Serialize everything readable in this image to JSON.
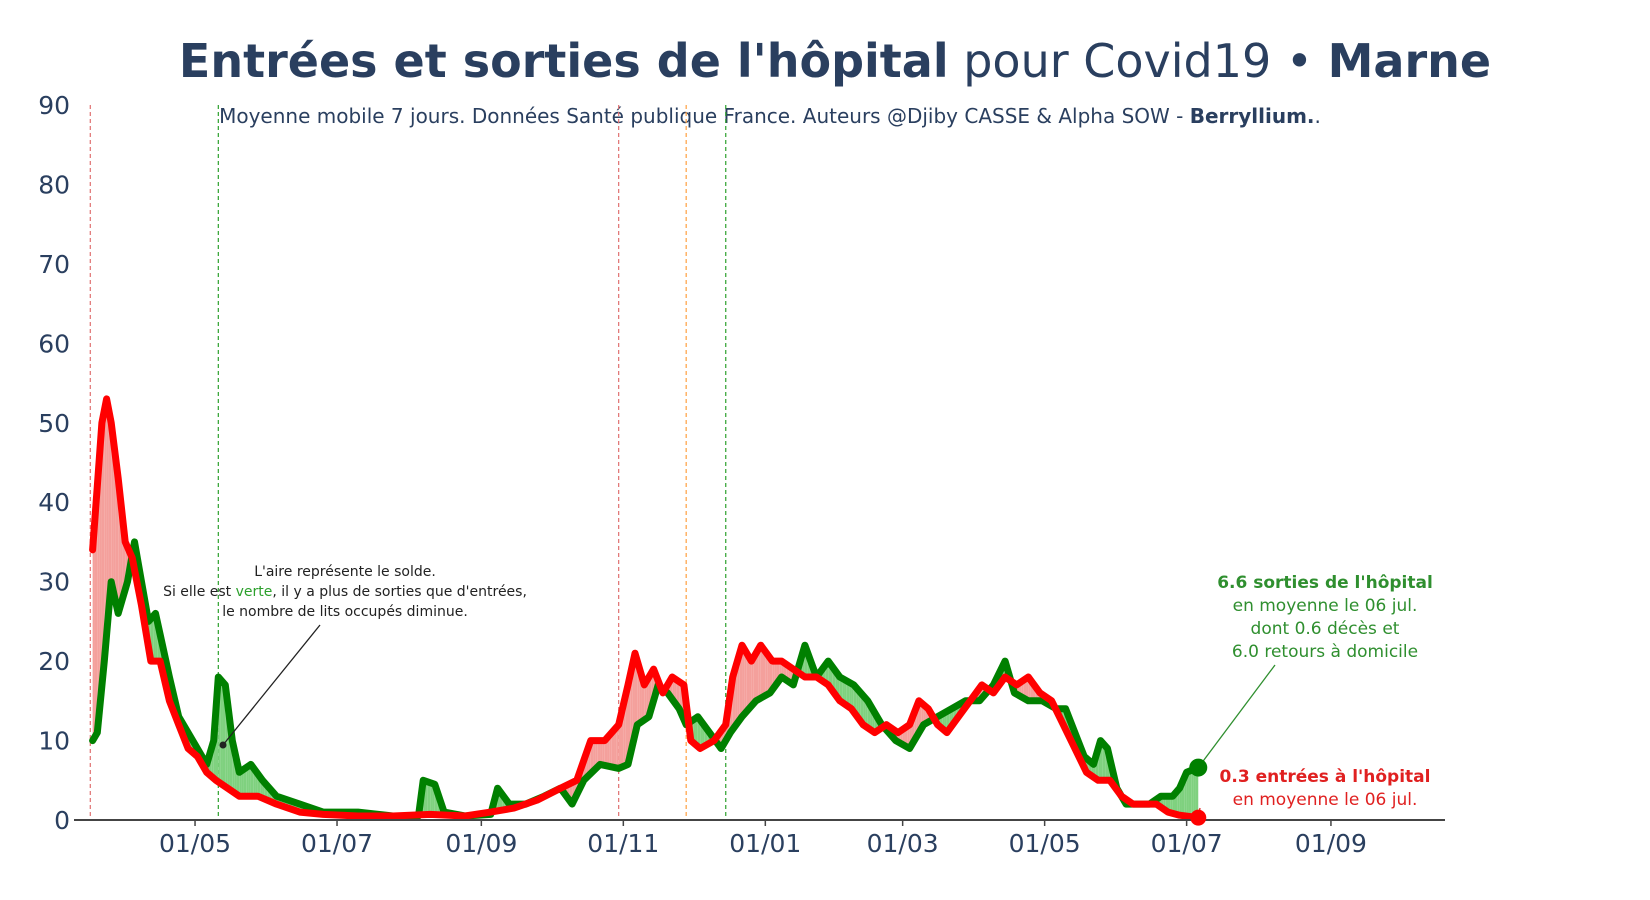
{
  "title": {
    "bold_part": "Entrées et sorties de l'hôpital",
    "normal_part": " pour Covid19 • ",
    "region": "Marne"
  },
  "subtitle": {
    "text": "Moyenne mobile 7 jours. Données Santé publique France. Auteurs @Djiby CASSE & Alpha SOW - ",
    "brand": "Berryllium.",
    "suffix": "."
  },
  "colors": {
    "sorties": "#008000",
    "entrees": "#ff0000",
    "fill_green": "#7fd17f",
    "fill_red": "#f4a09c",
    "axis": "#444444",
    "text": "#2a3f5f"
  },
  "annotations": {
    "area_note": {
      "line1": "L'aire représente le solde.",
      "line2_pre": "Si elle est ",
      "line2_green": "verte",
      "line2_post": ", il y a plus de sorties que d'entrées,",
      "line3": "le nombre de lits occupés diminue."
    },
    "sorties": {
      "line1": "6.6 sorties de l'hôpital",
      "line2": "en moyenne le 06 jul.",
      "line3": "dont 0.6 décès et",
      "line4": "6.0 retours à domicile"
    },
    "entrees": {
      "line1": "0.3 entrées à l'hôpital",
      "line2": "en moyenne le 06 jul."
    }
  },
  "chart_data": {
    "type": "line",
    "ylim": [
      0,
      90
    ],
    "yticks": [
      "0",
      "10",
      "20",
      "30",
      "40",
      "50",
      "60",
      "70",
      "80",
      "90"
    ],
    "xticks": [
      "01/05",
      "01/07",
      "01/09",
      "01/11",
      "01/01",
      "01/03",
      "01/05",
      "01/07",
      "01/09"
    ],
    "xtick_dates": [
      "2020-05-01",
      "2020-07-01",
      "2020-09-01",
      "2020-11-01",
      "2021-01-01",
      "2021-03-01",
      "2021-05-01",
      "2021-07-01",
      "2021-09-01"
    ],
    "xlim": [
      "2020-03-10",
      "2021-10-20"
    ],
    "vlines": [
      {
        "date": "2020-03-17",
        "color": "#e07070"
      },
      {
        "date": "2020-05-11",
        "color": "#2ca02c"
      },
      {
        "date": "2020-10-30",
        "color": "#e07070"
      },
      {
        "date": "2020-11-28",
        "color": "#ffa040"
      },
      {
        "date": "2020-12-15",
        "color": "#2ca02c"
      }
    ],
    "series": [
      {
        "name": "sorties",
        "points": [
          [
            "2020-03-18",
            10
          ],
          [
            "2020-03-20",
            11
          ],
          [
            "2020-03-23",
            20
          ],
          [
            "2020-03-26",
            30
          ],
          [
            "2020-03-29",
            26
          ],
          [
            "2020-04-02",
            30
          ],
          [
            "2020-04-05",
            35
          ],
          [
            "2020-04-08",
            30
          ],
          [
            "2020-04-11",
            25
          ],
          [
            "2020-04-14",
            26
          ],
          [
            "2020-04-17",
            22
          ],
          [
            "2020-04-20",
            18
          ],
          [
            "2020-04-24",
            13
          ],
          [
            "2020-04-28",
            11
          ],
          [
            "2020-05-02",
            9
          ],
          [
            "2020-05-06",
            7
          ],
          [
            "2020-05-09",
            10
          ],
          [
            "2020-05-11",
            18
          ],
          [
            "2020-05-14",
            17
          ],
          [
            "2020-05-17",
            10
          ],
          [
            "2020-05-20",
            6
          ],
          [
            "2020-05-25",
            7
          ],
          [
            "2020-05-30",
            5
          ],
          [
            "2020-06-05",
            3
          ],
          [
            "2020-06-15",
            2
          ],
          [
            "2020-06-25",
            1
          ],
          [
            "2020-07-10",
            1
          ],
          [
            "2020-07-25",
            0.5
          ],
          [
            "2020-08-05",
            0.5
          ],
          [
            "2020-08-07",
            5
          ],
          [
            "2020-08-12",
            4.5
          ],
          [
            "2020-08-16",
            1
          ],
          [
            "2020-08-25",
            0.5
          ],
          [
            "2020-09-05",
            0.7
          ],
          [
            "2020-09-08",
            4
          ],
          [
            "2020-09-13",
            2
          ],
          [
            "2020-09-20",
            2
          ],
          [
            "2020-09-28",
            3
          ],
          [
            "2020-10-05",
            4
          ],
          [
            "2020-10-10",
            2
          ],
          [
            "2020-10-15",
            5
          ],
          [
            "2020-10-22",
            7
          ],
          [
            "2020-10-30",
            6.5
          ],
          [
            "2020-11-03",
            7
          ],
          [
            "2020-11-07",
            12
          ],
          [
            "2020-11-12",
            13
          ],
          [
            "2020-11-16",
            17
          ],
          [
            "2020-11-20",
            16
          ],
          [
            "2020-11-25",
            14
          ],
          [
            "2020-11-28",
            12
          ],
          [
            "2020-12-03",
            13
          ],
          [
            "2020-12-08",
            11
          ],
          [
            "2020-12-13",
            9
          ],
          [
            "2020-12-17",
            11
          ],
          [
            "2020-12-22",
            13
          ],
          [
            "2020-12-28",
            15
          ],
          [
            "2021-01-03",
            16
          ],
          [
            "2021-01-08",
            18
          ],
          [
            "2021-01-13",
            17
          ],
          [
            "2021-01-18",
            22
          ],
          [
            "2021-01-23",
            18
          ],
          [
            "2021-01-28",
            20
          ],
          [
            "2021-02-02",
            18
          ],
          [
            "2021-02-08",
            17
          ],
          [
            "2021-02-14",
            15
          ],
          [
            "2021-02-20",
            12
          ],
          [
            "2021-02-26",
            10
          ],
          [
            "2021-03-04",
            9
          ],
          [
            "2021-03-10",
            12
          ],
          [
            "2021-03-16",
            13
          ],
          [
            "2021-03-22",
            14
          ],
          [
            "2021-03-28",
            15
          ],
          [
            "2021-04-03",
            15
          ],
          [
            "2021-04-09",
            17
          ],
          [
            "2021-04-14",
            20
          ],
          [
            "2021-04-18",
            16
          ],
          [
            "2021-04-24",
            15
          ],
          [
            "2021-04-30",
            15
          ],
          [
            "2021-05-06",
            14
          ],
          [
            "2021-05-10",
            14
          ],
          [
            "2021-05-14",
            11
          ],
          [
            "2021-05-18",
            8
          ],
          [
            "2021-05-22",
            7
          ],
          [
            "2021-05-25",
            10
          ],
          [
            "2021-05-28",
            9
          ],
          [
            "2021-06-01",
            4
          ],
          [
            "2021-06-05",
            2
          ],
          [
            "2021-06-10",
            2
          ],
          [
            "2021-06-15",
            2
          ],
          [
            "2021-06-20",
            3
          ],
          [
            "2021-06-25",
            3
          ],
          [
            "2021-06-28",
            4
          ],
          [
            "2021-07-01",
            6
          ],
          [
            "2021-07-06",
            6.6
          ]
        ]
      },
      {
        "name": "entrées",
        "points": [
          [
            "2020-03-18",
            34
          ],
          [
            "2020-03-20",
            42
          ],
          [
            "2020-03-22",
            50
          ],
          [
            "2020-03-24",
            53
          ],
          [
            "2020-03-26",
            50
          ],
          [
            "2020-03-29",
            43
          ],
          [
            "2020-04-01",
            35
          ],
          [
            "2020-04-04",
            33
          ],
          [
            "2020-04-08",
            27
          ],
          [
            "2020-04-12",
            20
          ],
          [
            "2020-04-16",
            20
          ],
          [
            "2020-04-20",
            15
          ],
          [
            "2020-04-24",
            12
          ],
          [
            "2020-04-28",
            9
          ],
          [
            "2020-05-02",
            8
          ],
          [
            "2020-05-06",
            6
          ],
          [
            "2020-05-10",
            5
          ],
          [
            "2020-05-15",
            4
          ],
          [
            "2020-05-20",
            3
          ],
          [
            "2020-05-28",
            3
          ],
          [
            "2020-06-05",
            2
          ],
          [
            "2020-06-15",
            1
          ],
          [
            "2020-06-25",
            0.7
          ],
          [
            "2020-07-10",
            0.5
          ],
          [
            "2020-07-25",
            0.5
          ],
          [
            "2020-08-10",
            0.7
          ],
          [
            "2020-08-25",
            0.5
          ],
          [
            "2020-09-05",
            1
          ],
          [
            "2020-09-15",
            1.5
          ],
          [
            "2020-09-25",
            2.5
          ],
          [
            "2020-10-05",
            4
          ],
          [
            "2020-10-12",
            5
          ],
          [
            "2020-10-18",
            10
          ],
          [
            "2020-10-24",
            10
          ],
          [
            "2020-10-30",
            12
          ],
          [
            "2020-11-03",
            17
          ],
          [
            "2020-11-06",
            21
          ],
          [
            "2020-11-10",
            17
          ],
          [
            "2020-11-14",
            19
          ],
          [
            "2020-11-18",
            16
          ],
          [
            "2020-11-22",
            18
          ],
          [
            "2020-11-27",
            17
          ],
          [
            "2020-11-30",
            10
          ],
          [
            "2020-12-04",
            9
          ],
          [
            "2020-12-10",
            10
          ],
          [
            "2020-12-15",
            12
          ],
          [
            "2020-12-18",
            18
          ],
          [
            "2020-12-22",
            22
          ],
          [
            "2020-12-26",
            20
          ],
          [
            "2020-12-30",
            22
          ],
          [
            "2021-01-04",
            20
          ],
          [
            "2021-01-08",
            20
          ],
          [
            "2021-01-13",
            19
          ],
          [
            "2021-01-18",
            18
          ],
          [
            "2021-01-23",
            18
          ],
          [
            "2021-01-28",
            17
          ],
          [
            "2021-02-02",
            15
          ],
          [
            "2021-02-07",
            14
          ],
          [
            "2021-02-12",
            12
          ],
          [
            "2021-02-17",
            11
          ],
          [
            "2021-02-22",
            12
          ],
          [
            "2021-02-27",
            11
          ],
          [
            "2021-03-04",
            12
          ],
          [
            "2021-03-08",
            15
          ],
          [
            "2021-03-12",
            14
          ],
          [
            "2021-03-16",
            12
          ],
          [
            "2021-03-20",
            11
          ],
          [
            "2021-03-25",
            13
          ],
          [
            "2021-03-30",
            15
          ],
          [
            "2021-04-04",
            17
          ],
          [
            "2021-04-09",
            16
          ],
          [
            "2021-04-14",
            18
          ],
          [
            "2021-04-19",
            17
          ],
          [
            "2021-04-24",
            18
          ],
          [
            "2021-04-29",
            16
          ],
          [
            "2021-05-04",
            15
          ],
          [
            "2021-05-09",
            12
          ],
          [
            "2021-05-14",
            9
          ],
          [
            "2021-05-19",
            6
          ],
          [
            "2021-05-24",
            5
          ],
          [
            "2021-05-29",
            5
          ],
          [
            "2021-06-03",
            3
          ],
          [
            "2021-06-08",
            2
          ],
          [
            "2021-06-13",
            2
          ],
          [
            "2021-06-18",
            2
          ],
          [
            "2021-06-23",
            1
          ],
          [
            "2021-06-28",
            0.6
          ],
          [
            "2021-07-06",
            0.3
          ]
        ]
      }
    ]
  }
}
